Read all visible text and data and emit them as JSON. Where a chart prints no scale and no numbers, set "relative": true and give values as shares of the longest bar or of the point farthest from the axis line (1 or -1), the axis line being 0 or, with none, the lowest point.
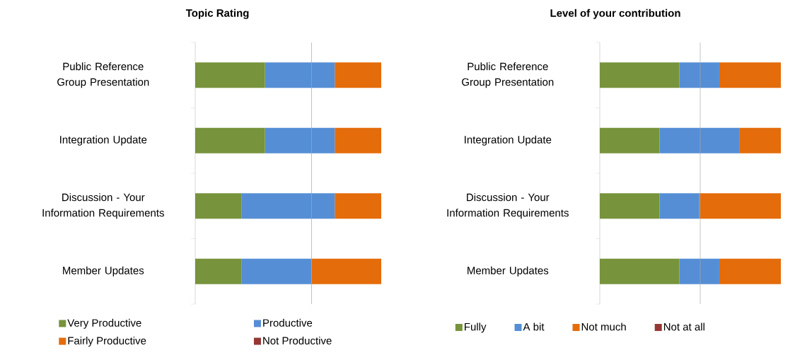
{
  "chart_data": [
    {
      "type": "bar",
      "title": "Topic Rating",
      "orientation": "horizontal",
      "stacked": true,
      "relative": true,
      "legend": "bottom",
      "categories": [
        "Public Reference Group Presentation",
        "Integration Update",
        "Discussion - Your Information Requirements",
        "Member Updates"
      ],
      "series": [
        {
          "name": "Very Productive",
          "color": "#77933c",
          "values": [
            0.375,
            0.375,
            0.25,
            0.25
          ]
        },
        {
          "name": "Productive",
          "color": "#558ed5",
          "values": [
            0.375,
            0.375,
            0.5,
            0.375
          ]
        },
        {
          "name": "Fairly Productive",
          "color": "#e46c0a",
          "values": [
            0.25,
            0.25,
            0.25,
            0.375
          ]
        },
        {
          "name": "Not Productive",
          "color": "#953735",
          "values": [
            0,
            0,
            0,
            0
          ]
        }
      ],
      "ref_lines": [
        {
          "axis": "x",
          "value": 0.625,
          "color": "#a6a6a6"
        }
      ]
    },
    {
      "type": "bar",
      "title": "Level of your contribution",
      "orientation": "horizontal",
      "stacked": true,
      "relative": true,
      "legend": "bottom",
      "categories": [
        "Public Reference Group Presentation",
        "Integration Update",
        "Discussion - Your Information Requirements",
        "Member Updates"
      ],
      "series": [
        {
          "name": "Fully",
          "color": "#77933c",
          "values": [
            0.44,
            0.33,
            0.33,
            0.44
          ]
        },
        {
          "name": "A bit",
          "color": "#558ed5",
          "values": [
            0.22,
            0.44,
            0.22,
            0.22
          ]
        },
        {
          "name": "Not much",
          "color": "#e46c0a",
          "values": [
            0.34,
            0.23,
            0.45,
            0.34
          ]
        },
        {
          "name": "Not at all",
          "color": "#953735",
          "values": [
            0,
            0,
            0,
            0
          ]
        }
      ],
      "ref_lines": [
        {
          "axis": "x",
          "value": 0.555,
          "color": "#a6a6a6"
        }
      ]
    }
  ]
}
